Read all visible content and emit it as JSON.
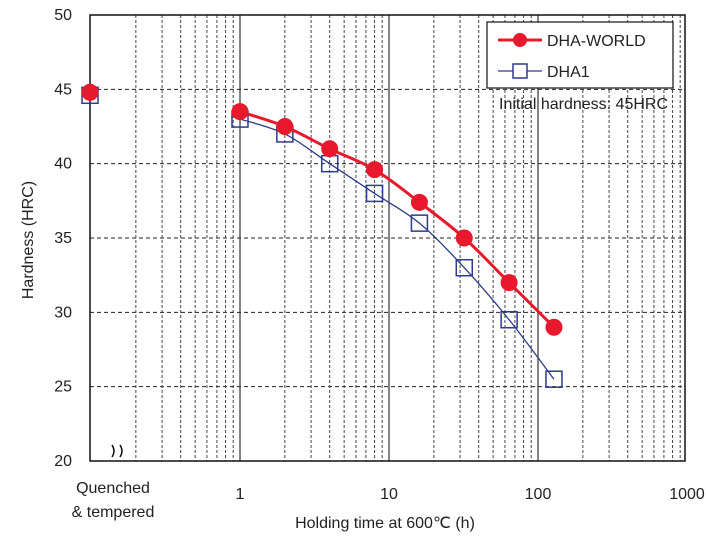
{
  "chart_data": {
    "type": "line",
    "xlabel": "Holding time at 600℃ (h)",
    "ylabel": "Hardness (HRC)",
    "x_scale": "log",
    "xlim": [
      1,
      1000
    ],
    "ylim": [
      20,
      50
    ],
    "y_ticks": [
      20,
      25,
      30,
      35,
      40,
      45,
      50
    ],
    "x_ticks": [
      1,
      10,
      100,
      1000
    ],
    "x_tick_labels": [
      "1",
      "10",
      "100",
      "1000"
    ],
    "y_tick_labels": [
      "20",
      "25",
      "30",
      "35",
      "40",
      "45",
      "50"
    ],
    "extra_category_label": [
      "Quenched",
      "& tempered"
    ],
    "annotation": "Initial hardness: 45HRC",
    "grid": true,
    "legend_position": "top-right",
    "initial_point_label": "Quenched & tempered",
    "series": [
      {
        "name": "DHA-WORLD",
        "color": "#e8192c",
        "marker": "filled-circle",
        "initial": 44.8,
        "x": [
          1,
          2,
          4,
          8,
          16,
          32,
          64,
          128
        ],
        "y": [
          43.5,
          42.5,
          41.0,
          39.6,
          37.4,
          35.0,
          32.0,
          29.0
        ]
      },
      {
        "name": "DHA1",
        "color": "#2e3a8c",
        "marker": "open-square",
        "initial": 44.6,
        "x": [
          1,
          2,
          4,
          8,
          16,
          32,
          64,
          128
        ],
        "y": [
          43.0,
          42.0,
          40.0,
          38.0,
          36.0,
          33.0,
          29.5,
          25.5
        ]
      }
    ]
  }
}
